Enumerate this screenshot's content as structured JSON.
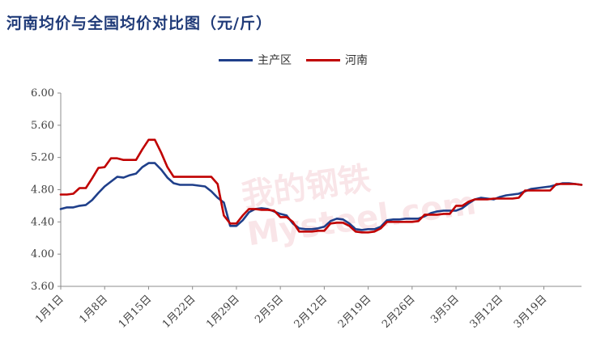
{
  "chart_data": {
    "type": "line",
    "title": "河南均价与全国均价对比图（元/斤）",
    "xlabel": "",
    "ylabel": "",
    "ylim": [
      3.6,
      6.0
    ],
    "yticks": [
      "3.60",
      "4.00",
      "4.40",
      "4.80",
      "5.20",
      "5.60",
      "6.00"
    ],
    "x_ticks": [
      "1月1日",
      "1月8日",
      "1月15日",
      "1月22日",
      "1月29日",
      "2月5日",
      "2月12日",
      "2月19日",
      "2月26日",
      "3月5日",
      "3月12日",
      "3月19日"
    ],
    "legend_position": "top-center",
    "grid": false,
    "series": [
      {
        "name": "主产区",
        "color": "#1f3f8a",
        "values": [
          4.56,
          4.58,
          4.58,
          4.6,
          4.61,
          4.67,
          4.76,
          4.84,
          4.9,
          4.96,
          4.95,
          4.98,
          5.0,
          5.08,
          5.13,
          5.13,
          5.05,
          4.95,
          4.88,
          4.86,
          4.86,
          4.86,
          4.85,
          4.84,
          4.78,
          4.7,
          4.64,
          4.35,
          4.35,
          4.42,
          4.52,
          4.56,
          4.57,
          4.56,
          4.53,
          4.5,
          4.48,
          4.38,
          4.32,
          4.31,
          4.31,
          4.32,
          4.34,
          4.41,
          4.44,
          4.43,
          4.38,
          4.31,
          4.3,
          4.31,
          4.31,
          4.34,
          4.42,
          4.43,
          4.43,
          4.44,
          4.44,
          4.44,
          4.47,
          4.51,
          4.53,
          4.54,
          4.54,
          4.54,
          4.57,
          4.63,
          4.68,
          4.7,
          4.69,
          4.68,
          4.71,
          4.73,
          4.74,
          4.75,
          4.78,
          4.81,
          4.82,
          4.83,
          4.84,
          4.86,
          4.88,
          4.88,
          4.87,
          4.86
        ]
      },
      {
        "name": "河南",
        "color": "#c00000",
        "values": [
          4.74,
          4.74,
          4.75,
          4.82,
          4.82,
          4.94,
          5.07,
          5.08,
          5.19,
          5.19,
          5.17,
          5.17,
          5.17,
          5.3,
          5.42,
          5.42,
          5.26,
          5.08,
          4.96,
          4.96,
          4.96,
          4.96,
          4.96,
          4.96,
          4.96,
          4.87,
          4.48,
          4.38,
          4.38,
          4.48,
          4.56,
          4.56,
          4.55,
          4.55,
          4.54,
          4.46,
          4.46,
          4.4,
          4.28,
          4.28,
          4.28,
          4.29,
          4.29,
          4.38,
          4.39,
          4.39,
          4.35,
          4.28,
          4.27,
          4.27,
          4.28,
          4.32,
          4.4,
          4.4,
          4.4,
          4.4,
          4.4,
          4.41,
          4.49,
          4.49,
          4.49,
          4.5,
          4.5,
          4.6,
          4.6,
          4.65,
          4.68,
          4.68,
          4.68,
          4.69,
          4.69,
          4.69,
          4.69,
          4.7,
          4.79,
          4.79,
          4.79,
          4.79,
          4.79,
          4.87,
          4.87,
          4.87,
          4.87,
          4.86
        ]
      }
    ]
  },
  "watermark": "我的钢铁 Mysteel.com"
}
